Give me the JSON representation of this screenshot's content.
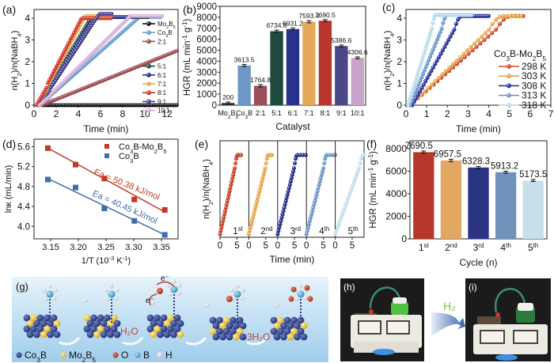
{
  "figure": {
    "panels": [
      "(a)",
      "(b)",
      "(c)",
      "(d)",
      "(e)",
      "(f)",
      "(g)",
      "(h)",
      "(i)"
    ]
  },
  "chart_data": [
    {
      "id": "a",
      "type": "line",
      "title": "",
      "xlabel": "Time (min)",
      "ylabel": "n(H2)/n(NaBH4)",
      "xlim": [
        0,
        13
      ],
      "ylim": [
        0,
        4.4
      ],
      "xticks": [
        0,
        2,
        4,
        6,
        8,
        10,
        12
      ],
      "yticks": [
        0,
        1,
        2,
        3,
        4
      ],
      "legend_position": "right",
      "series": [
        {
          "name": "Mo2B5",
          "label": "Mo₂B₅",
          "color": "#111111",
          "t_start": 0.8,
          "plateau": 0.0,
          "t_end": 13,
          "rate": 0.0
        },
        {
          "name": "Co3B",
          "label": "Co₃B",
          "color": "#6a9fd2",
          "t_start": 0.5,
          "plateau": 4.05,
          "t_end": 11.5,
          "rate": 0.45
        },
        {
          "name": "2:1",
          "label": "2:1",
          "color": "#9b4a50",
          "t_start": 0.7,
          "plateau": 2.5,
          "t_end": 13,
          "rate": 0.205
        },
        {
          "name": "5:1",
          "label": "5:1",
          "color": "#1f4a3c",
          "t_start": 0.4,
          "plateau": 4.05,
          "t_end": 10.3,
          "rate": 0.85
        },
        {
          "name": "6:1",
          "label": "6:1",
          "color": "#24318f",
          "t_start": 0.4,
          "plateau": 4.05,
          "t_end": 9.0,
          "rate": 0.8
        },
        {
          "name": "7:1",
          "label": "7:1",
          "color": "#e8a84c",
          "t_start": 0.3,
          "plateau": 4.1,
          "t_end": 7.0,
          "rate": 0.95
        },
        {
          "name": "8:1",
          "label": "8:1",
          "color": "#d2372c",
          "t_start": 0.2,
          "plateau": 4.0,
          "t_end": 7.0,
          "rate": 0.98
        },
        {
          "name": "9:1",
          "label": "9:1",
          "color": "#4a3f8f",
          "t_start": 0.5,
          "plateau": 4.2,
          "t_end": 7.0,
          "rate": 0.78
        },
        {
          "name": "10:1",
          "label": "10:1",
          "color": "#d7aed6",
          "t_start": 0.5,
          "plateau": 4.1,
          "t_end": 11.6,
          "rate": 0.5
        }
      ]
    },
    {
      "id": "b",
      "type": "bar",
      "title": "",
      "xlabel": "Catalyst",
      "ylabel": "HGR (mL min⁻¹ g⁻¹)",
      "ylim": [
        0,
        9000
      ],
      "yticks": [
        0,
        1000,
        2000,
        3000,
        4000,
        5000,
        6000,
        7000,
        8000,
        9000
      ],
      "categories": [
        "Mo₂B₅",
        "Co₃B",
        "2:1",
        "5:1",
        "6:1",
        "7:1",
        "8:1",
        "9:1",
        "10:1"
      ],
      "values": [
        200,
        3613.5,
        1764.8,
        6734.8,
        6931.2,
        7593.4,
        7690.5,
        5386.6,
        4306.6
      ],
      "value_labels": [
        "200",
        "3613.5",
        "1764.8",
        "6734.8",
        "6931.2",
        "7593.4",
        "7690.5",
        "5386.6",
        "4306.6"
      ],
      "errors": [
        90,
        100,
        110,
        100,
        100,
        100,
        100,
        90,
        90
      ],
      "colors": [
        "#333333",
        "#6f97c6",
        "#9c4f58",
        "#1f4a3f",
        "#28318c",
        "#e5a85b",
        "#b8362b",
        "#4b4887",
        "#c7a6c9"
      ]
    },
    {
      "id": "c",
      "type": "line",
      "title": "",
      "xlabel": "Time (min)",
      "ylabel": "n(H2)/n(NaBH4)",
      "xlim": [
        0,
        7
      ],
      "ylim": [
        0,
        4.4
      ],
      "xticks": [
        0,
        1,
        2,
        3,
        4,
        5,
        6,
        7
      ],
      "yticks": [
        0,
        1,
        2,
        3,
        4
      ],
      "legend_title": "Co₃B-Mo₂B₅",
      "legend_position": "right",
      "series": [
        {
          "name": "298 K",
          "color": "#d04a2c",
          "t_start": 0.2,
          "t_plateau": 5.1,
          "t_end": 5.85,
          "plateau": 4.1
        },
        {
          "name": "303 K",
          "color": "#e8a650",
          "t_start": 0.2,
          "t_plateau": 4.7,
          "t_end": 5.6,
          "plateau": 4.1
        },
        {
          "name": "308 K",
          "color": "#28349a",
          "t_start": 0.3,
          "t_plateau": 2.7,
          "t_end": 4.05,
          "plateau": 4.1
        },
        {
          "name": "313 K",
          "color": "#6f97c8",
          "t_start": 0.2,
          "t_plateau": 2.0,
          "t_end": 3.2,
          "plateau": 4.15
        },
        {
          "name": "318 K",
          "color": "#bcdbee",
          "t_start": 0.1,
          "t_plateau": 1.45,
          "t_end": 3.2,
          "plateau": 4.15
        }
      ]
    },
    {
      "id": "d",
      "type": "scatter",
      "title": "",
      "xlabel": "1/T (10⁻³ K⁻¹)",
      "ylabel": "lnκ (mL/min)",
      "xlim": [
        3.12,
        3.38
      ],
      "ylim": [
        3.75,
        5.75
      ],
      "xticks": [
        3.15,
        3.2,
        3.25,
        3.3,
        3.35
      ],
      "yticks": [
        4.0,
        4.4,
        4.8,
        5.2,
        5.6
      ],
      "legend_position": "top-right",
      "series": [
        {
          "name": "Co₃B-Mo₂B₅",
          "color": "#c0392b",
          "x": [
            3.145,
            3.195,
            3.247,
            3.301,
            3.356
          ],
          "y": [
            5.57,
            5.24,
            4.96,
            4.54,
            4.33
          ],
          "fit": [
            [
              3.145,
              5.57
            ],
            [
              3.356,
              4.29
            ]
          ],
          "annotation": "Ea = 50.38 kJ/mol"
        },
        {
          "name": "Co₃B",
          "color": "#3d6fa8",
          "x": [
            3.145,
            3.195,
            3.247,
            3.301,
            3.356
          ],
          "y": [
            4.94,
            4.78,
            4.36,
            4.11,
            3.83
          ],
          "fit": [
            [
              3.145,
              4.96
            ],
            [
              3.356,
              3.83
            ]
          ],
          "annotation": "Ea = 40.45 kJ/mol"
        }
      ]
    },
    {
      "id": "e",
      "type": "line",
      "title": "",
      "xlabel": "Time (min)",
      "ylabel": "n(H2)/n(NaBH4)",
      "xticks_per_panel": [
        0,
        5
      ],
      "xlim_per_panel": [
        0,
        8.5
      ],
      "series": [
        {
          "name": "1st",
          "color": "#c8442c",
          "t_plateau": 5.2,
          "t_end": 6.2
        },
        {
          "name": "2nd",
          "color": "#e8a84c",
          "t_plateau": 5.8,
          "t_end": 6.8
        },
        {
          "name": "3rd",
          "color": "#28318f",
          "t_plateau": 5.8,
          "t_end": 8.3
        },
        {
          "name": "4th",
          "color": "#6f97c8",
          "t_plateau": 6.0,
          "t_end": 8.5
        },
        {
          "name": "5th",
          "color": "#c3dfee",
          "t_plateau": 8.4,
          "t_end": 8.5
        }
      ],
      "cycle_labels": [
        {
          "base": "1",
          "sup": "st"
        },
        {
          "base": "2",
          "sup": "nd"
        },
        {
          "base": "3",
          "sup": "rd"
        },
        {
          "base": "4",
          "sup": "th"
        },
        {
          "base": "5",
          "sup": "th"
        }
      ]
    },
    {
      "id": "f",
      "type": "bar",
      "title": "",
      "xlabel": "Cycle (n)",
      "ylabel": "HGR (mL min⁻¹ g⁻¹)",
      "ylim": [
        0,
        8700
      ],
      "yticks": [
        0,
        2000,
        4000,
        6000,
        8000
      ],
      "categories": [
        {
          "base": "1",
          "sup": "st"
        },
        {
          "base": "2",
          "sup": "nd"
        },
        {
          "base": "3",
          "sup": "rd"
        },
        {
          "base": "4",
          "sup": "th"
        },
        {
          "base": "5",
          "sup": "th"
        }
      ],
      "values": [
        7690.5,
        6957.5,
        6328.3,
        5913.2,
        5173.5
      ],
      "value_labels": [
        "7690.5",
        "6957.5",
        "6328.3",
        "5913.2",
        "5173.5"
      ],
      "errors": [
        100,
        100,
        90,
        90,
        90
      ],
      "colors": [
        "#b5372b",
        "#e2a862",
        "#2b3483",
        "#6f91ba",
        "#c8e0ec"
      ]
    }
  ],
  "scheme_g": {
    "legend": [
      {
        "label": "Co₃B",
        "color": "#2d3e8c"
      },
      {
        "label": "Mo₂B₅",
        "color": "#f0cc3a"
      },
      {
        "label": "O",
        "color": "#c0392b"
      },
      {
        "label": "B",
        "color": "#58a9d4"
      },
      {
        "label": "H",
        "color": "#ffffff"
      }
    ],
    "step_labels": [
      "H₂O",
      "3H₂O"
    ],
    "electron_label": "e⁻"
  },
  "photos": {
    "h_label": "(h)",
    "i_label": "(i)",
    "arrow_label": "H₂",
    "arrow_label_color": "#7cc243"
  }
}
